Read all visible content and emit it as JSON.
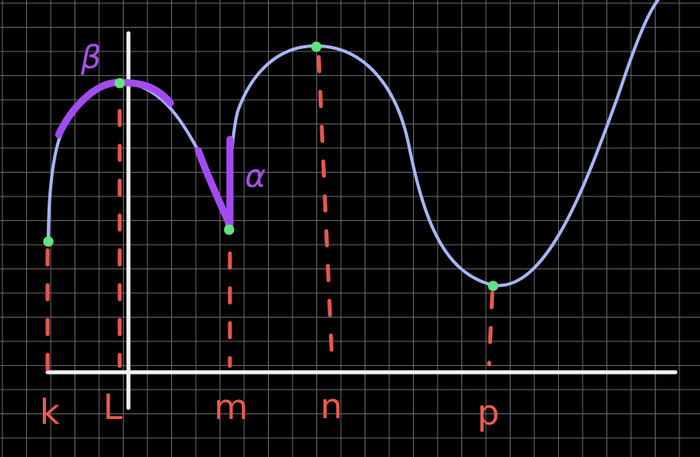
{
  "colors": {
    "background": "#000000",
    "grid": "#6a6a6a",
    "axis": "#f2f2f2",
    "curve": "#a8b4f5",
    "highlight": "#a34bf0",
    "dashed": "#e8564d",
    "point": "#62e37e",
    "x_label": "#ee5a4e",
    "greek_label": "#a950ee"
  },
  "x_labels": {
    "k": "k",
    "L": "L",
    "m": "m",
    "n": "n",
    "p": "p"
  },
  "annotations": {
    "beta": "β",
    "alpha": "α"
  },
  "points": [
    {
      "name": "k",
      "kind": "left endpoint"
    },
    {
      "name": "L",
      "kind": "local maximum (smooth)"
    },
    {
      "name": "m",
      "kind": "cusp / corner minimum"
    },
    {
      "name": "n",
      "kind": "local maximum (smooth)"
    },
    {
      "name": "p",
      "kind": "local minimum (smooth)"
    }
  ]
}
